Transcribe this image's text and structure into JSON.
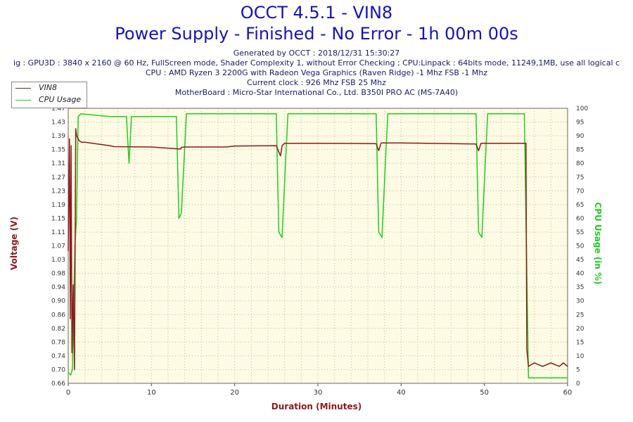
{
  "header": {
    "title_line1": "OCCT 4.5.1 - VIN8",
    "title_line2": "Power Supply - Finished - No Error - 1h 00m 00s",
    "generated": "Generated by OCCT : 2018/12/31 15:30:27",
    "config": "ig : GPU3D : 3840 x 2160 @ 60 Hz, FullScreen mode, Shader Complexity 1, without Error Checking ; CPU:Linpack : 64bits mode, 11249,1MB, use all logical c",
    "cpu": "CPU : AMD Ryzen 3 2200G with Radeon Vega Graphics (Raven Ridge) -1 Mhz FSB -1 Mhz",
    "clock": "Current clock : 926 Mhz FSB 25 Mhz",
    "motherboard": "MotherBoard : Micro-Star International Co., Ltd. B350I PRO AC (MS-7A40)"
  },
  "colors": {
    "voltage": "#8b1a1a",
    "cpu": "#22cc22",
    "plot_bg": "#fdfbe3",
    "grid": "#b8b8b8"
  },
  "chart_data": {
    "type": "line",
    "title": "OCCT 4.5.1 - VIN8",
    "subtitle": "Power Supply - Finished - No Error - 1h 00m 00s",
    "xlabel": "Duration (Minutes)",
    "ylabel_left": "Voltage (V)",
    "ylabel_right": "CPU Usage (in %)",
    "xlim": [
      0,
      60
    ],
    "ylim_left": [
      0.66,
      1.47
    ],
    "ylim_right": [
      0,
      100
    ],
    "grid": true,
    "legend_position": "top-left",
    "x_ticks": [
      "0",
      "10",
      "20",
      "30",
      "40",
      "50",
      "60"
    ],
    "y_left_ticks": [
      "0.66",
      "0.70",
      "0.74",
      "0.78",
      "0.82",
      "0.86",
      "0.90",
      "0.94",
      "0.98",
      "1.03",
      "1.07",
      "1.11",
      "1.15",
      "1.19",
      "1.23",
      "1.27",
      "1.31",
      "1.35",
      "1.39",
      "1.43",
      "1.47"
    ],
    "y_right_ticks": [
      "0",
      "5",
      "10",
      "15",
      "20",
      "25",
      "30",
      "35",
      "40",
      "45",
      "50",
      "55",
      "60",
      "65",
      "70",
      "75",
      "80",
      "85",
      "90",
      "95",
      "100"
    ],
    "series": [
      {
        "name": "VIN8",
        "axis": "left",
        "x": [
          0,
          0.15,
          0.25,
          0.35,
          0.45,
          0.6,
          0.75,
          0.9,
          1.0,
          1.1,
          1.3,
          1.6,
          2.0,
          5,
          5.5,
          10,
          13.5,
          13.6,
          14,
          19,
          20,
          25,
          25.5,
          25.7,
          26,
          30,
          37,
          37.3,
          37.6,
          38,
          40,
          49,
          49.3,
          49.6,
          50,
          55,
          55.1,
          55.3,
          56,
          57,
          58,
          59,
          59.5,
          60
        ],
        "values": [
          1.05,
          1.38,
          0.85,
          1.36,
          0.75,
          0.95,
          0.7,
          1.41,
          1.39,
          1.385,
          1.375,
          1.37,
          1.37,
          1.36,
          1.357,
          1.356,
          1.35,
          1.355,
          1.356,
          1.356,
          1.359,
          1.36,
          1.33,
          1.36,
          1.367,
          1.367,
          1.366,
          1.345,
          1.368,
          1.368,
          1.368,
          1.365,
          1.345,
          1.367,
          1.367,
          1.367,
          0.76,
          0.71,
          0.72,
          0.71,
          0.72,
          0.71,
          0.72,
          0.71
        ]
      },
      {
        "name": "CPU Usage",
        "axis": "right",
        "x": [
          0,
          0.3,
          0.5,
          0.8,
          1.0,
          1.2,
          1.5,
          5,
          7,
          7.3,
          7.6,
          13,
          13.3,
          13.6,
          13.9,
          14.2,
          25,
          25.3,
          25.7,
          26.1,
          26.4,
          37,
          37.3,
          37.7,
          38.1,
          38.4,
          49,
          49.3,
          49.7,
          50.1,
          50.4,
          54.8,
          55.0,
          55.3,
          60
        ],
        "values": [
          4,
          3,
          5,
          50,
          60,
          97,
          98,
          97,
          97,
          80,
          97,
          97,
          60,
          62,
          80,
          98,
          98,
          55,
          53,
          80,
          98,
          98,
          55,
          53,
          80,
          98,
          98,
          55,
          53,
          80,
          98,
          98,
          60,
          2,
          2
        ]
      }
    ]
  }
}
